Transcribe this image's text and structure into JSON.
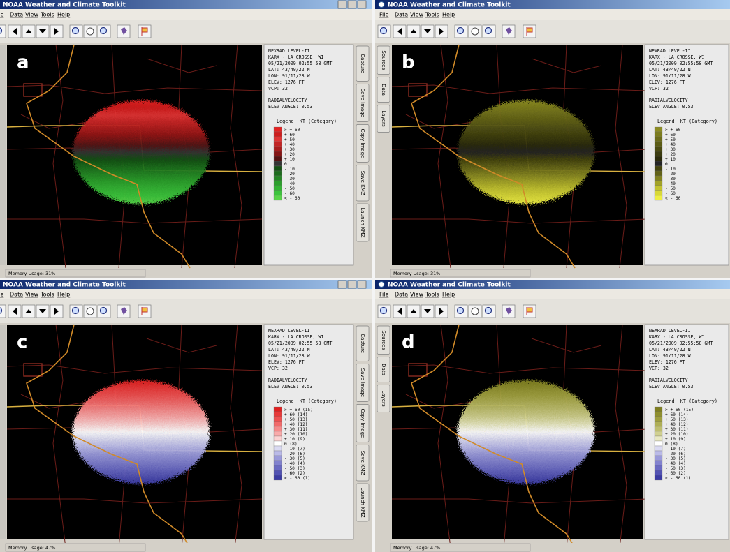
{
  "panels": [
    {
      "label": "a",
      "title": "NOAA Weather and Climate Toolkit",
      "menu": [
        "File",
        "Data",
        "View",
        "Tools",
        "Help"
      ],
      "tabs": [
        "Capture",
        "Save Image",
        "Copy Image",
        "Save KMZ",
        "Launch KMZ"
      ],
      "info": [
        "NEXRAD LEVEL-II",
        "KARX - LA CROSSE, WI",
        "05/21/2009 02:55:58 GMT",
        "LAT: 43/49/22 N",
        "LON: 91/11/28 W",
        "ELEV: 1276 FT",
        "VCP: 32",
        "RADIALVELOCITY",
        "ELEV ANGLE: 0.53"
      ],
      "legend_title": "Legend: KT (Category)",
      "legend": {
        "labels": [
          "> + 60",
          "+ 60",
          "+ 50",
          "+ 40",
          "+ 30",
          "+ 20",
          "+ 10",
          "0",
          "- 10",
          "- 20",
          "- 30",
          "- 40",
          "- 50",
          "- 60",
          "< - 60"
        ],
        "colors": [
          "#e42222",
          "#d01c1c",
          "#e03434",
          "#c42424",
          "#a81c1c",
          "#861414",
          "#561212",
          "#343434",
          "#145014",
          "#1c6c1c",
          "#248624",
          "#2ca02c",
          "#34b434",
          "#3cc43c",
          "#58d448"
        ]
      },
      "status": "Memory Usage: 31%"
    },
    {
      "label": "b",
      "title": "NOAA Weather and Climate Toolkit",
      "menu": [
        "File",
        "Data",
        "View",
        "Tools",
        "Help"
      ],
      "tabs": [
        "Sources",
        "Data",
        "Layers"
      ],
      "info": [
        "NEXRAD LEVEL-II",
        "KARX - LA CROSSE, WI",
        "05/21/2009 02:55:58 GMT",
        "LAT: 43/49/22 N",
        "LON: 91/11/28 W",
        "ELEV: 1276 FT",
        "VCP: 32",
        "RADIALVELOCITY",
        "ELEV ANGLE: 0.53"
      ],
      "legend_title": "Legend: KT (Category)",
      "legend": {
        "labels": [
          "> + 60",
          "+ 60",
          "+ 50",
          "+ 40",
          "+ 30",
          "+ 20",
          "+ 10",
          "0",
          "- 10",
          "- 20",
          "- 30",
          "- 40",
          "- 50",
          "- 60",
          "< - 60"
        ],
        "colors": [
          "#8c8c22",
          "#7c7c1c",
          "#6c6c1a",
          "#5c5c14",
          "#4c4c12",
          "#3c3c10",
          "#2c2c0c",
          "#242424",
          "#44440e",
          "#626218",
          "#828220",
          "#a2a228",
          "#c2c230",
          "#d8d838",
          "#eeee44"
        ]
      },
      "status": "Memory Usage: 31%"
    },
    {
      "label": "c",
      "title": "NOAA Weather and Climate Toolkit",
      "menu": [
        "File",
        "Data",
        "View",
        "Tools",
        "Help"
      ],
      "tabs": [
        "Capture",
        "Save Image",
        "Copy Image",
        "Save KMZ",
        "Launch KMZ"
      ],
      "info": [
        "NEXRAD LEVEL-II",
        "KARX - LA CROSSE, WI",
        "05/21/2009 02:55:58 GMT",
        "LAT: 43/49/22 N",
        "LON: 91/11/28 W",
        "ELEV: 1276 FT",
        "VCP: 32",
        "RADIALVELOCITY",
        "ELEV ANGLE: 0.53"
      ],
      "legend_title": "Legend: KT (Category)",
      "legend": {
        "labels": [
          "> + 60 (15)",
          "+ 60 (14)",
          "+ 50 (13)",
          "+ 40 (12)",
          "+ 30 (11)",
          "+ 20 (10)",
          "+ 10 (9)",
          "0 (8)",
          "- 10 (7)",
          "- 20 (6)",
          "- 30 (5)",
          "- 40 (4)",
          "- 50 (3)",
          "- 60 (2)",
          "< - 60 (1)"
        ],
        "colors": [
          "#e02020",
          "#e83838",
          "#ee5050",
          "#f26a6a",
          "#f68a8a",
          "#faaaaa",
          "#fcd2d2",
          "#ffffff",
          "#dadaf2",
          "#babae8",
          "#9a9ada",
          "#8282ce",
          "#6a6ac2",
          "#5252b2",
          "#3a3aa2"
        ]
      },
      "status": "Memory Usage: 47%"
    },
    {
      "label": "d",
      "title": "NOAA Weather and Climate Toolkit",
      "menu": [
        "File",
        "Data",
        "View",
        "Tools",
        "Help"
      ],
      "tabs": [
        "Sources",
        "Data",
        "Layers"
      ],
      "info": [
        "NEXRAD LEVEL-II",
        "KARX - LA CROSSE, WI",
        "05/21/2009 02:55:58 GMT",
        "LAT: 43/49/22 N",
        "LON: 91/11/28 W",
        "ELEV: 1276 FT",
        "VCP: 32",
        "RADIALVELOCITY",
        "ELEV ANGLE: 0.53"
      ],
      "legend_title": "Legend: KT (Category)",
      "legend": {
        "labels": [
          "> + 60 (15)",
          "+ 60 (14)",
          "+ 50 (13)",
          "+ 40 (12)",
          "+ 30 (11)",
          "+ 20 (10)",
          "+ 10 (9)",
          "0 (8)",
          "- 10 (7)",
          "- 20 (6)",
          "- 30 (5)",
          "- 40 (4)",
          "- 50 (3)",
          "- 60 (2)",
          "< - 60 (1)"
        ],
        "colors": [
          "#7e7e20",
          "#8e8e2e",
          "#9e9e3e",
          "#aeae56",
          "#bebe70",
          "#d0d090",
          "#e8e8c2",
          "#ffffff",
          "#dadaf2",
          "#babae8",
          "#9a9ada",
          "#8282ce",
          "#6a6ac2",
          "#5252b2",
          "#3a3aa2"
        ]
      },
      "status": "Memory Usage: 47%"
    }
  ]
}
